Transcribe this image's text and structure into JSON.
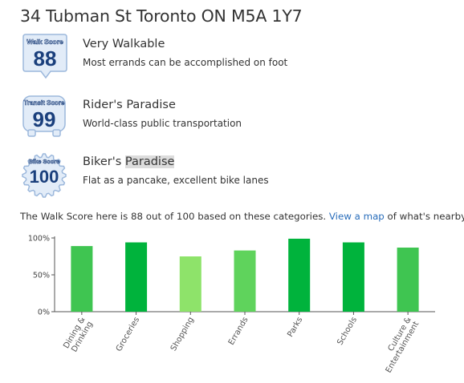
{
  "address": "34 Tubman St Toronto ON M5A 1Y7",
  "scores": {
    "walk": {
      "badge_label": "Walk Score",
      "value": "88",
      "title": "Very Walkable",
      "description": "Most errands can be accomplished on foot",
      "icon": "speech-bubble-badge-icon"
    },
    "transit": {
      "badge_label": "Transit Score",
      "value": "99",
      "title": "Rider's Paradise",
      "description": "World-class public transportation",
      "icon": "bus-badge-icon"
    },
    "bike": {
      "badge_label": "Bike Score",
      "value": "100",
      "title_part1": "Biker's ",
      "title_highlight": "Paradise",
      "description": "Flat as a pancake, excellent bike lanes",
      "icon": "gear-badge-icon"
    }
  },
  "summary": {
    "prefix": "The Walk Score here is 88 out of 100 based on these categories. ",
    "link_text": "View a map",
    "suffix": " of what's nearby."
  },
  "colors": {
    "badge_fill": "#e2ecf8",
    "badge_stroke": "#9cb8dc",
    "badge_number": "#1a3f7c",
    "link": "#2a6ebb",
    "bar_dark": "#00b33c",
    "bar_mid": "#3fc551",
    "bar_light": "#5fd35c",
    "bar_pale": "#8ee36a"
  },
  "chart_data": {
    "type": "bar",
    "categories": [
      "Dining & Drinking",
      "Groceries",
      "Shopping",
      "Errands",
      "Parks",
      "Schools",
      "Culture & Entertainment"
    ],
    "values": [
      89,
      94,
      75,
      83,
      99,
      94,
      87
    ],
    "bar_colors": [
      "#3fc551",
      "#00b33c",
      "#8ee36a",
      "#5fd35c",
      "#00b33c",
      "#00b33c",
      "#3fc551"
    ],
    "ylim": [
      0,
      100
    ],
    "yticks": [
      0,
      50,
      100
    ],
    "ytick_labels": [
      "0%",
      "50%",
      "100%"
    ],
    "grid": false,
    "title": "",
    "xlabel": "",
    "ylabel": ""
  }
}
